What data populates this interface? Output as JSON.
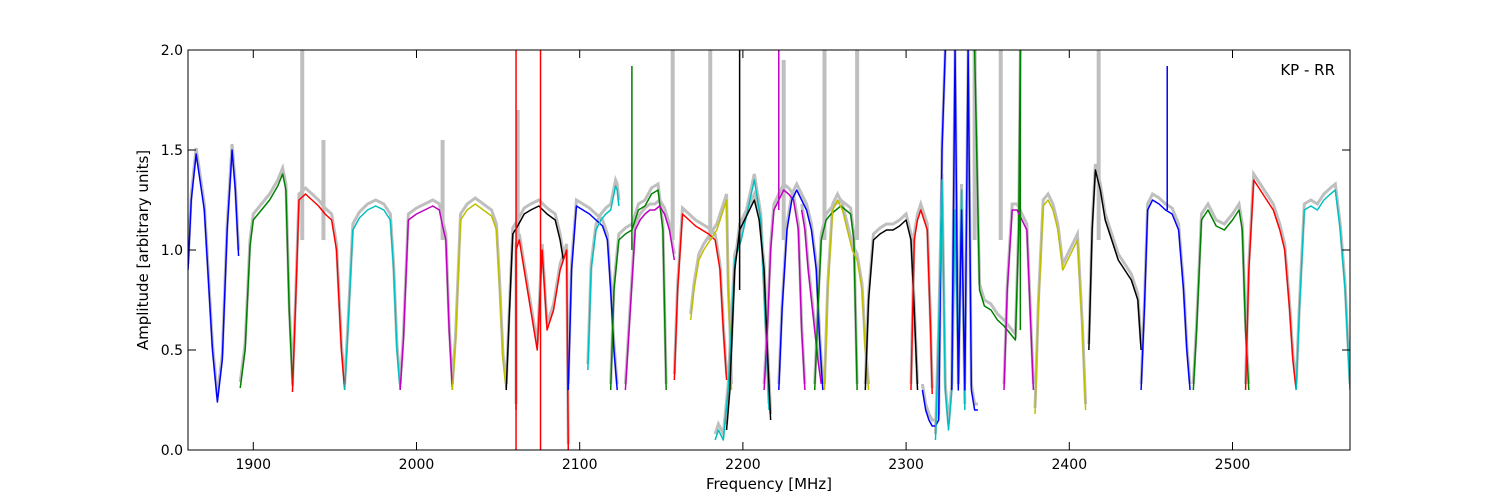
{
  "chart_data": {
    "type": "line",
    "title": "",
    "xlabel": "Frequency [MHz]",
    "ylabel": "Amplitude [arbitrary units]",
    "annotation": "KP - RR",
    "xlim": [
      1860,
      2572
    ],
    "ylim": [
      0.0,
      2.0
    ],
    "x_ticks": [
      1900,
      2000,
      2100,
      2200,
      2300,
      2400,
      2500
    ],
    "y_ticks": [
      0.0,
      0.5,
      1.0,
      1.5,
      2.0
    ],
    "x_tick_labels": [
      "1900",
      "2000",
      "2100",
      "2200",
      "2300",
      "2400",
      "2500"
    ],
    "y_tick_labels": [
      "0.0",
      "0.5",
      "1.0",
      "1.5",
      "2.0"
    ],
    "grid": false,
    "background_series": {
      "name": "",
      "color": "#bfbfbf",
      "note_spikes": [
        [
          1930,
          2.0
        ],
        [
          1943,
          1.55
        ],
        [
          2016,
          1.55
        ],
        [
          2062,
          1.7
        ],
        [
          2157,
          2.0
        ],
        [
          2180,
          2.0
        ],
        [
          2225,
          1.95
        ],
        [
          2250,
          2.0
        ],
        [
          2270,
          2.0
        ],
        [
          2342,
          2.0
        ],
        [
          2358,
          2.0
        ],
        [
          2418,
          2.0
        ]
      ]
    },
    "series": [
      {
        "color": "#0000ff",
        "x": [
          1860,
          1862,
          1865,
          1870,
          1875,
          1878,
          1881,
          1884,
          1887,
          1889,
          1891
        ],
        "y": [
          0.9,
          1.25,
          1.48,
          1.2,
          0.5,
          0.24,
          0.45,
          1.1,
          1.5,
          1.3,
          0.97
        ]
      },
      {
        "color": "#008000",
        "x": [
          1892,
          1895,
          1898,
          1900,
          1905,
          1910,
          1915,
          1918,
          1920,
          1922,
          1924
        ],
        "y": [
          0.31,
          0.5,
          1.02,
          1.15,
          1.2,
          1.25,
          1.32,
          1.38,
          1.3,
          0.7,
          0.33
        ]
      },
      {
        "color": "#ff0000",
        "x": [
          1924,
          1926,
          1928,
          1932,
          1936,
          1940,
          1944,
          1948,
          1951,
          1954,
          1956
        ],
        "y": [
          0.29,
          0.75,
          1.25,
          1.28,
          1.25,
          1.22,
          1.18,
          1.15,
          1.0,
          0.5,
          0.3
        ]
      },
      {
        "color": "#00bfbf",
        "x": [
          1956,
          1958,
          1961,
          1965,
          1970,
          1975,
          1980,
          1984,
          1986,
          1988,
          1990
        ],
        "y": [
          0.3,
          0.6,
          1.1,
          1.16,
          1.2,
          1.22,
          1.2,
          1.15,
          0.9,
          0.5,
          0.3
        ]
      },
      {
        "color": "#bf00bf",
        "x": [
          1990,
          1992,
          1995,
          2000,
          2005,
          2010,
          2014,
          2016,
          2018,
          2020,
          2022
        ],
        "y": [
          0.3,
          0.55,
          1.15,
          1.18,
          1.2,
          1.22,
          1.2,
          1.12,
          1.05,
          0.6,
          0.3
        ]
      },
      {
        "color": "#bfbf00",
        "x": [
          2022,
          2024,
          2027,
          2031,
          2036,
          2041,
          2046,
          2049,
          2051,
          2053,
          2055
        ],
        "y": [
          0.3,
          0.55,
          1.15,
          1.2,
          1.23,
          1.2,
          1.17,
          1.1,
          0.8,
          0.45,
          0.3
        ]
      },
      {
        "color": "#000000",
        "x": [
          2055,
          2057,
          2059,
          2062,
          2066,
          2070,
          2075,
          2080,
          2085,
          2088,
          2090
        ],
        "y": [
          0.3,
          0.7,
          1.08,
          1.12,
          1.18,
          1.2,
          1.22,
          1.18,
          1.15,
          1.05,
          0.95
        ]
      },
      {
        "color": "#ff0000",
        "x": [
          2061,
          2061,
          2063,
          2066,
          2070,
          2074,
          2077,
          2080,
          2084,
          2088,
          2092,
          2093
        ],
        "y": [
          0.2,
          1.0,
          1.05,
          0.9,
          0.7,
          0.5,
          1.0,
          0.6,
          0.7,
          0.9,
          1.0,
          0.0
        ]
      },
      {
        "color": "#0000ff",
        "x": [
          2093,
          2095,
          2098,
          2102,
          2106,
          2110,
          2114,
          2117,
          2119,
          2121,
          2123
        ],
        "y": [
          0.3,
          0.9,
          1.22,
          1.2,
          1.18,
          1.15,
          1.12,
          1.05,
          0.8,
          0.5,
          0.3
        ]
      },
      {
        "color": "#00bfbf",
        "x": [
          2105,
          2107,
          2110,
          2113,
          2116,
          2119,
          2121,
          2122,
          2123,
          2124
        ],
        "y": [
          0.4,
          0.9,
          1.1,
          1.15,
          1.18,
          1.2,
          1.28,
          1.32,
          1.3,
          1.22
        ]
      },
      {
        "color": "#008000",
        "x": [
          2119,
          2121,
          2124,
          2128,
          2132,
          2136,
          2140,
          2144,
          2148,
          2151,
          2153
        ],
        "y": [
          0.3,
          0.8,
          1.05,
          1.08,
          1.1,
          1.2,
          1.22,
          1.28,
          1.3,
          1.1,
          0.3
        ]
      },
      {
        "color": "#bf00bf",
        "x": [
          2128,
          2131,
          2134,
          2137,
          2140,
          2143,
          2146,
          2149,
          2152,
          2155,
          2158
        ],
        "y": [
          0.3,
          0.7,
          1.1,
          1.15,
          1.18,
          1.2,
          1.2,
          1.22,
          1.18,
          1.1,
          0.95
        ]
      },
      {
        "color": "#ff0000",
        "x": [
          2158,
          2160,
          2163,
          2167,
          2171,
          2175,
          2179,
          2183,
          2186,
          2188,
          2190
        ],
        "y": [
          0.35,
          0.8,
          1.18,
          1.15,
          1.12,
          1.1,
          1.08,
          1.05,
          0.9,
          0.6,
          0.35
        ]
      },
      {
        "color": "#bfbf00",
        "x": [
          2168,
          2170,
          2173,
          2176,
          2180,
          2184,
          2188,
          2190,
          2191,
          2192,
          2193
        ],
        "y": [
          0.65,
          0.8,
          0.95,
          1.0,
          1.05,
          1.1,
          1.2,
          1.25,
          0.8,
          0.6,
          0.3
        ]
      },
      {
        "color": "#00bfbf",
        "x": [
          2183,
          2185,
          2188,
          2191,
          2195,
          2199,
          2203,
          2207,
          2211,
          2214,
          2216
        ],
        "y": [
          0.05,
          0.1,
          0.05,
          0.3,
          0.95,
          1.05,
          1.2,
          1.35,
          1.15,
          0.6,
          0.2
        ]
      },
      {
        "color": "#000000",
        "x": [
          2190,
          2192,
          2195,
          2198,
          2201,
          2204,
          2207,
          2210,
          2213,
          2215,
          2217
        ],
        "y": [
          0.1,
          0.3,
          0.9,
          1.1,
          1.15,
          1.2,
          1.25,
          1.15,
          0.9,
          0.5,
          0.15
        ]
      },
      {
        "color": "#bf00bf",
        "x": [
          2213,
          2215,
          2217,
          2219,
          2222,
          2225,
          2228,
          2231,
          2234,
          2236,
          2238
        ],
        "y": [
          0.3,
          0.6,
          1.0,
          1.2,
          1.25,
          1.3,
          1.28,
          1.25,
          1.1,
          0.6,
          0.3
        ]
      },
      {
        "color": "#0000ff",
        "x": [
          2222,
          2224,
          2227,
          2230,
          2233,
          2236,
          2239,
          2242,
          2245,
          2247,
          2249
        ],
        "y": [
          0.3,
          0.7,
          1.1,
          1.25,
          1.3,
          1.25,
          1.2,
          1.1,
          0.9,
          0.55,
          0.3
        ]
      },
      {
        "color": "#bf00bf",
        "x": [
          2236,
          2238,
          2240,
          2242,
          2244,
          2246,
          2248
        ],
        "y": [
          1.2,
          1.1,
          0.9,
          0.75,
          0.6,
          0.45,
          0.33
        ]
      },
      {
        "color": "#008000",
        "x": [
          2244,
          2246,
          2248,
          2251,
          2254,
          2257,
          2260,
          2263,
          2266,
          2268,
          2270
        ],
        "y": [
          0.3,
          0.7,
          1.05,
          1.15,
          1.18,
          1.2,
          1.22,
          1.2,
          1.18,
          1.05,
          0.3
        ]
      },
      {
        "color": "#bfbf00",
        "x": [
          2250,
          2252,
          2255,
          2258,
          2261,
          2264,
          2267,
          2270,
          2273,
          2275,
          2277
        ],
        "y": [
          0.3,
          0.8,
          1.2,
          1.25,
          1.2,
          1.1,
          1.0,
          0.95,
          0.8,
          0.5,
          0.3
        ]
      },
      {
        "color": "#000000",
        "x": [
          2275,
          2277,
          2280,
          2284,
          2288,
          2292,
          2296,
          2300,
          2303,
          2305,
          2307
        ],
        "y": [
          0.3,
          0.75,
          1.05,
          1.08,
          1.1,
          1.1,
          1.12,
          1.15,
          1.05,
          0.7,
          0.3
        ]
      },
      {
        "color": "#ff0000",
        "x": [
          2303,
          2305,
          2307,
          2309,
          2311,
          2313,
          2315,
          2316
        ],
        "y": [
          0.3,
          1.05,
          1.15,
          1.2,
          1.15,
          1.1,
          0.6,
          0.28
        ]
      },
      {
        "color": "#0000ff",
        "x": [
          2310,
          2312,
          2314,
          2316,
          2318,
          2320,
          2322,
          2324
        ],
        "y": [
          0.3,
          0.2,
          0.15,
          0.12,
          0.12,
          0.15,
          1.5,
          2.0
        ]
      },
      {
        "color": "#00bfbf",
        "x": [
          2318,
          2320,
          2322,
          2324,
          2326,
          2328,
          2330,
          2332,
          2334,
          2336
        ],
        "y": [
          0.05,
          0.6,
          1.35,
          0.3,
          0.1,
          0.3,
          1.2,
          0.4,
          1.3,
          0.2
        ]
      },
      {
        "color": "#0000ff",
        "x": [
          2328,
          2330,
          2332,
          2334,
          2336,
          2338,
          2340,
          2342,
          2344
        ],
        "y": [
          0.3,
          2.0,
          0.3,
          1.2,
          0.3,
          2.0,
          0.3,
          0.2,
          0.2
        ]
      },
      {
        "color": "#008000",
        "x": [
          2342,
          2345,
          2348,
          2352,
          2356,
          2360,
          2364,
          2367,
          2369,
          2370
        ],
        "y": [
          2.0,
          0.8,
          0.72,
          0.7,
          0.65,
          0.62,
          0.58,
          0.55,
          1.1,
          2.0
        ]
      },
      {
        "color": "#bf00bf",
        "x": [
          2360,
          2362,
          2365,
          2368,
          2371,
          2374,
          2376,
          2378
        ],
        "y": [
          0.3,
          0.8,
          1.2,
          1.2,
          1.15,
          1.1,
          0.7,
          0.3
        ]
      },
      {
        "color": "#bfbf00",
        "x": [
          2379,
          2381,
          2384,
          2387,
          2390,
          2393,
          2396,
          2399,
          2402,
          2405,
          2408,
          2410
        ],
        "y": [
          0.18,
          0.7,
          1.22,
          1.25,
          1.2,
          1.1,
          0.9,
          0.95,
          1.0,
          1.05,
          0.6,
          0.2
        ]
      },
      {
        "color": "#000000",
        "x": [
          2412,
          2414,
          2416,
          2419,
          2422,
          2426,
          2430,
          2434,
          2438,
          2442,
          2444
        ],
        "y": [
          0.5,
          1.1,
          1.4,
          1.3,
          1.15,
          1.05,
          0.95,
          0.9,
          0.85,
          0.75,
          0.5
        ]
      },
      {
        "color": "#0000ff",
        "x": [
          2444,
          2446,
          2448,
          2451,
          2455,
          2459,
          2463,
          2467,
          2470,
          2472,
          2474
        ],
        "y": [
          0.3,
          0.7,
          1.2,
          1.25,
          1.23,
          1.2,
          1.18,
          1.1,
          0.8,
          0.5,
          0.3
        ]
      },
      {
        "color": "#008000",
        "x": [
          2476,
          2478,
          2481,
          2485,
          2490,
          2495,
          2500,
          2504,
          2506,
          2508,
          2510
        ],
        "y": [
          0.3,
          0.6,
          1.15,
          1.2,
          1.12,
          1.1,
          1.15,
          1.2,
          1.1,
          0.6,
          0.3
        ]
      },
      {
        "color": "#ff0000",
        "x": [
          2508,
          2510,
          2513,
          2517,
          2521,
          2525,
          2529,
          2532,
          2535,
          2537,
          2539
        ],
        "y": [
          0.3,
          0.9,
          1.35,
          1.3,
          1.25,
          1.2,
          1.1,
          1.0,
          0.7,
          0.45,
          0.3
        ]
      },
      {
        "color": "#00bfbf",
        "x": [
          2539,
          2541,
          2544,
          2548,
          2552,
          2556,
          2560,
          2563,
          2566,
          2569,
          2572
        ],
        "y": [
          0.3,
          0.7,
          1.2,
          1.22,
          1.2,
          1.25,
          1.28,
          1.3,
          1.1,
          0.8,
          0.3
        ]
      }
    ],
    "spikes": [
      {
        "color": "#ff0000",
        "x": 2061,
        "y0": 0.0,
        "y1": 2.0
      },
      {
        "color": "#ff0000",
        "x": 2076,
        "y0": 0.0,
        "y1": 2.0
      },
      {
        "color": "#008000",
        "x": 2132,
        "y0": 1.0,
        "y1": 1.92
      },
      {
        "color": "#000000",
        "x": 2198,
        "y0": 0.8,
        "y1": 2.0
      },
      {
        "color": "#bf00bf",
        "x": 2222,
        "y0": 1.2,
        "y1": 2.0
      },
      {
        "color": "#0000ff",
        "x": 2460,
        "y0": 1.2,
        "y1": 1.92
      },
      {
        "color": "#008000",
        "x": 2370,
        "y0": 0.6,
        "y1": 2.0
      }
    ]
  }
}
